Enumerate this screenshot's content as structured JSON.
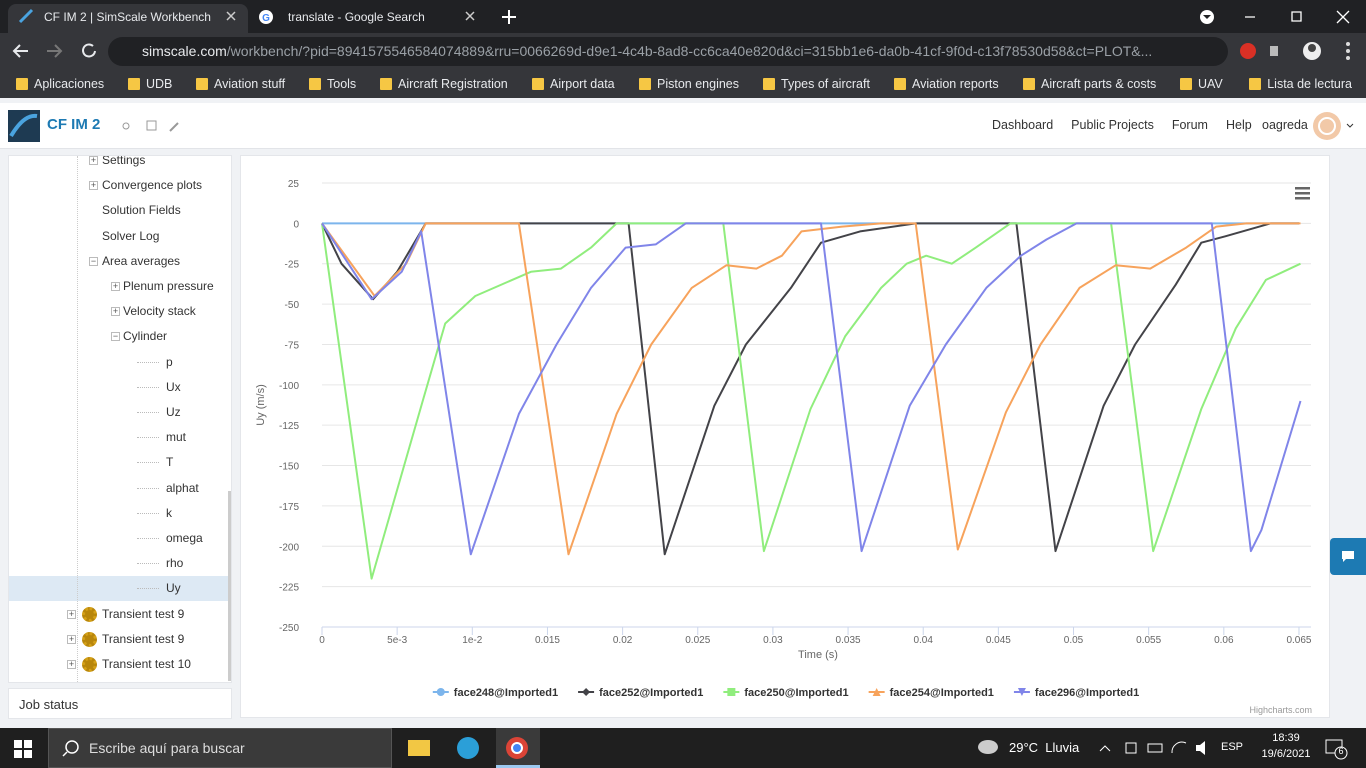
{
  "browser": {
    "tabs": [
      "CF IM 2 | SimScale Workbench",
      "translate - Google Search"
    ],
    "url_host": "simscale.com",
    "url_path": "/workbench/?pid=8941575546584074889&rru=0066269d-d9e1-4c4b-8ad8-cc6ca40e820d&ci=315bb1e6-da0b-41cf-9f0d-c13f78530d58&ct=PLOT&...",
    "bookmarks": [
      "Aplicaciones",
      "UDB",
      "Aviation stuff",
      "Tools",
      "Aircraft Registration",
      "Airport data",
      "Piston engines",
      "Types of aircraft",
      "Aviation reports",
      "Aircraft parts & costs",
      "UAV"
    ],
    "reading_list": "Lista de lectura"
  },
  "app": {
    "project": "CF IM 2",
    "nav": [
      "Dashboard",
      "Public Projects",
      "Forum",
      "Help"
    ],
    "user": "oagreda"
  },
  "sidebar": {
    "run_items": [
      {
        "label": "Settings",
        "expandable": true
      },
      {
        "label": "Convergence plots",
        "expandable": true
      },
      {
        "label": "Solution Fields"
      },
      {
        "label": "Solver Log"
      },
      {
        "label": "Area averages",
        "expandable": true,
        "expanded": true,
        "children": [
          {
            "label": "Plenum pressure",
            "expandable": true
          },
          {
            "label": "Velocity stack",
            "expandable": true
          },
          {
            "label": "Cylinder",
            "expandable": true,
            "expanded": true,
            "children": [
              {
                "label": "p"
              },
              {
                "label": "Ux"
              },
              {
                "label": "Uz"
              },
              {
                "label": "mut"
              },
              {
                "label": "T"
              },
              {
                "label": "alphat"
              },
              {
                "label": "k"
              },
              {
                "label": "omega"
              },
              {
                "label": "rho"
              },
              {
                "label": "Uy",
                "selected": true
              }
            ]
          }
        ]
      }
    ],
    "simulations": [
      "Transient test 9",
      "Transient test 9",
      "Transient test 10"
    ],
    "job_status": "Job status"
  },
  "chart_data": {
    "type": "line",
    "x_label": "Time (s)",
    "y_label": "Uy (m/s)",
    "credit": "Highcharts.com",
    "xlim": [
      0,
      0.0658
    ],
    "ylim": [
      -250,
      25
    ],
    "xticks": [
      0,
      {
        "value": 0.005,
        "label": "5e-3"
      },
      {
        "value": 0.01,
        "label": "1e-2"
      },
      0.015,
      0.02,
      0.025,
      0.03,
      0.035,
      0.04,
      0.045,
      0.05,
      0.055,
      0.06,
      0.065
    ],
    "yticks": [
      25,
      0,
      -25,
      -50,
      -75,
      -100,
      -125,
      -150,
      -175,
      -200,
      -225,
      -250
    ],
    "grid": true,
    "series": [
      {
        "name": "face248@Imported1",
        "color": "#7cb5ec",
        "symbol": "circle",
        "x": [
          0,
          0.065
        ],
        "values": [
          0,
          0
        ]
      },
      {
        "name": "face252@Imported1",
        "color": "#434348",
        "symbol": "diamond",
        "x": [
          0,
          0.0013,
          0.0034,
          0.005,
          0.0069,
          0.0204,
          0.0228,
          0.0261,
          0.0282,
          0.0312,
          0.0332,
          0.0358,
          0.0395,
          0.0462,
          0.0488,
          0.052,
          0.0541,
          0.0568,
          0.0585,
          0.0601,
          0.0631,
          0.065
        ],
        "values": [
          0,
          -25,
          -47,
          -30,
          0,
          0,
          -205,
          -113,
          -75,
          -40,
          -12,
          -5,
          0,
          0,
          -203,
          -113,
          -75,
          -38,
          -12,
          -8,
          0,
          0
        ]
      },
      {
        "name": "face250@Imported1",
        "color": "#90ed7d",
        "symbol": "square",
        "x": [
          0,
          0.0033,
          0.0067,
          0.0082,
          0.0102,
          0.0139,
          0.0159,
          0.0179,
          0.0196,
          0.0267,
          0.0294,
          0.0325,
          0.0348,
          0.0372,
          0.0389,
          0.0402,
          0.0419,
          0.0435,
          0.0458,
          0.0525,
          0.0553,
          0.0585,
          0.0608,
          0.0628,
          0.0651
        ],
        "values": [
          0,
          -220,
          -110,
          -62,
          -45,
          -30,
          -28,
          -15,
          0,
          0,
          -203,
          -115,
          -70,
          -40,
          -25,
          -20,
          -25,
          -15,
          0,
          0,
          -203,
          -115,
          -65,
          -35,
          -25
        ]
      },
      {
        "name": "face254@Imported1",
        "color": "#f7a35c",
        "symbol": "triangle",
        "x": [
          0,
          0.0035,
          0.0056,
          0.0069,
          0.0131,
          0.0164,
          0.0196,
          0.0219,
          0.0246,
          0.0269,
          0.0289,
          0.0306,
          0.0319,
          0.0346,
          0.0372,
          0.0395,
          0.0423,
          0.0455,
          0.0478,
          0.0504,
          0.0528,
          0.0551,
          0.0575,
          0.0595,
          0.0615,
          0.0651
        ],
        "values": [
          0,
          -45,
          -25,
          0,
          0,
          -205,
          -118,
          -75,
          -40,
          -26,
          -28,
          -20,
          -5,
          -2,
          0,
          0,
          -202,
          -117,
          -75,
          -40,
          -26,
          -28,
          -15,
          -2,
          0,
          0
        ]
      },
      {
        "name": "face296@Imported1",
        "color": "#8085e9",
        "symbol": "triangle-down",
        "x": [
          0,
          0.0033,
          0.0053,
          0.0066,
          0.0099,
          0.0131,
          0.0156,
          0.0179,
          0.0202,
          0.0222,
          0.0242,
          0.0332,
          0.0359,
          0.0391,
          0.0415,
          0.0442,
          0.0465,
          0.0482,
          0.0502,
          0.0592,
          0.0618,
          0.0625,
          0.0651
        ],
        "values": [
          0,
          -47,
          -30,
          -5,
          -205,
          -118,
          -75,
          -40,
          -15,
          -13,
          0,
          0,
          -203,
          -113,
          -75,
          -40,
          -20,
          -10,
          0,
          0,
          -203,
          -190,
          -110
        ]
      }
    ]
  },
  "taskbar": {
    "search": "Escribe aquí para buscar",
    "weather": "29°C  Lluvia",
    "language": "ESP",
    "time": "18:39",
    "date": "19/6/2021",
    "notifications": "6"
  }
}
